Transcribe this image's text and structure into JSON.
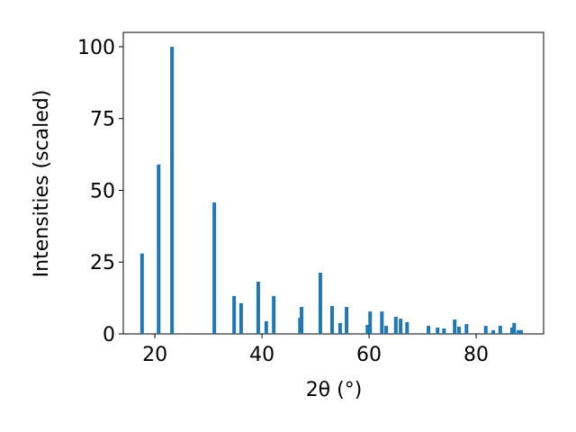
{
  "chart_data": {
    "type": "bar",
    "x_label": "2θ (°)",
    "y_label": "Intensities (scaled)",
    "color": "#1f77b4",
    "x": [
      17.6,
      20.7,
      23.2,
      31.1,
      34.8,
      36.1,
      39.3,
      40.8,
      42.2,
      47.1,
      47.4,
      50.9,
      53.1,
      54.6,
      55.8,
      59.7,
      60.2,
      62.4,
      63.2,
      65.0,
      65.9,
      67.1,
      71.1,
      72.8,
      74.0,
      76.0,
      76.8,
      78.2,
      81.8,
      83.2,
      84.5,
      86.7,
      87.1,
      87.9,
      88.4
    ],
    "values": [
      28,
      59,
      100,
      45.8,
      13.2,
      10.7,
      18.2,
      4.4,
      13.2,
      5.6,
      9.4,
      21.3,
      9.7,
      3.8,
      9.4,
      3.1,
      7.8,
      7.8,
      2.8,
      6,
      5.3,
      4.1,
      2.8,
      2.2,
      1.9,
      5,
      2.5,
      3.4,
      2.8,
      1.3,
      2.8,
      2.2,
      3.8,
      1.3,
      1.3
    ],
    "xlim": [
      14.1,
      92.6
    ],
    "xticks": [
      20,
      40,
      60,
      80
    ],
    "ylim": [
      0,
      105
    ],
    "yticks": [
      0,
      25,
      50,
      75,
      100
    ]
  }
}
